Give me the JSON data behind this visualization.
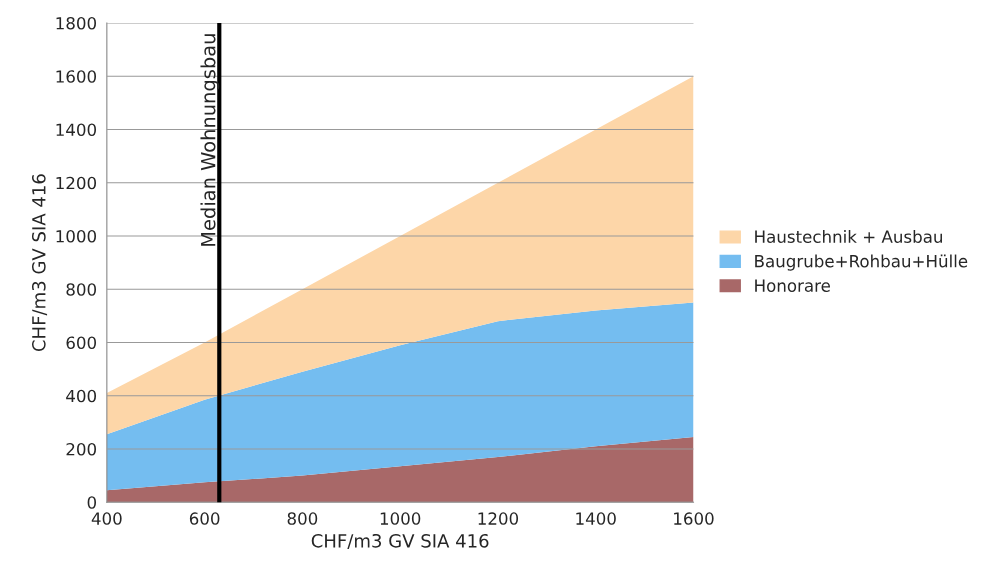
{
  "chart_data": {
    "type": "area",
    "stacked": true,
    "xlabel": "CHF/m3 GV SIA 416",
    "ylabel": "CHF/m3 GV SIA 416",
    "x": [
      400,
      600,
      800,
      1000,
      1200,
      1400,
      1600
    ],
    "series": [
      {
        "name": "Honorare",
        "color": "#a86868",
        "values": [
          45,
          75,
          100,
          135,
          170,
          210,
          245
        ]
      },
      {
        "name": "Baugrube+Rohbau+Hülle",
        "color": "#74bdf0",
        "values": [
          210,
          310,
          390,
          455,
          510,
          510,
          505
        ]
      },
      {
        "name": "Haustechnik + Ausbau",
        "color": "#fdd6a8",
        "values": [
          155,
          215,
          310,
          410,
          520,
          680,
          850
        ]
      }
    ],
    "xlim": [
      400,
      1600
    ],
    "xticks": [
      400,
      600,
      800,
      1000,
      1200,
      1400,
      1600
    ],
    "ylim": [
      0,
      1800
    ],
    "yticks": [
      0,
      200,
      400,
      600,
      800,
      1000,
      1200,
      1400,
      1600,
      1800
    ],
    "grid": "y",
    "legend": "right",
    "ref_lines": [
      {
        "axis": "x",
        "value": 630,
        "label": "Median Wohnungsbau",
        "color": "#000000"
      }
    ]
  }
}
